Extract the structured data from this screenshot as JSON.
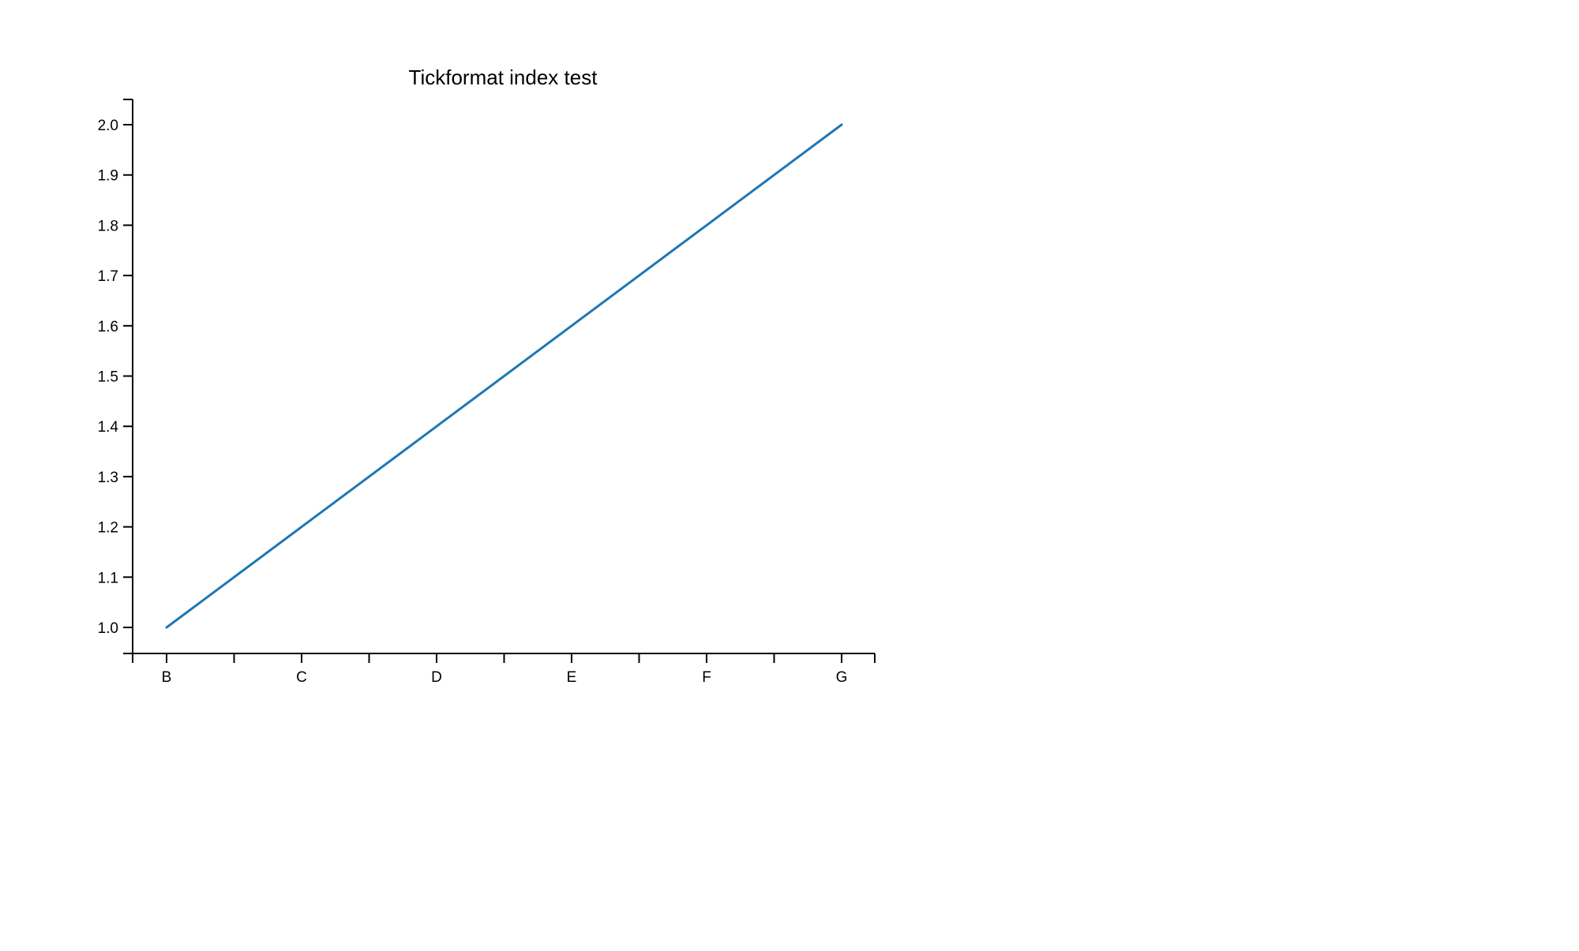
{
  "chart_data": {
    "type": "line",
    "title": "Tickformat index test",
    "xlabel": "",
    "ylabel": "",
    "categories": [
      "B",
      "C",
      "D",
      "E",
      "F",
      "G"
    ],
    "series": [
      {
        "values": [
          1.0,
          1.2,
          1.4,
          1.6,
          1.8,
          2.0
        ],
        "color": "#1f77b4"
      }
    ],
    "ylim": [
      0.95,
      2.05
    ],
    "y_ticks": [
      "1.0",
      "1.1",
      "1.2",
      "1.3",
      "1.4",
      "1.5",
      "1.6",
      "1.7",
      "1.8",
      "1.9",
      "2.0"
    ],
    "grid": false,
    "legend": "none"
  }
}
